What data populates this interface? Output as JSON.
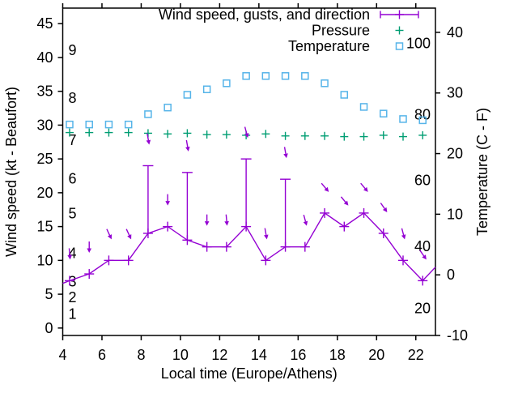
{
  "chart_data": {
    "type": "line",
    "title": "",
    "xlabel": "Local time (Europe/Athens)",
    "ylabel_left": "Wind speed (kt - Beaufort)",
    "ylabel_right": "Temperature (C - F)",
    "x_range": [
      4,
      23
    ],
    "left_range": [
      -1.1,
      47.3
    ],
    "right_range": [
      -10,
      44
    ],
    "x_ticks": [
      4,
      6,
      8,
      10,
      12,
      14,
      16,
      18,
      20,
      22
    ],
    "left_ticks": [
      0,
      5,
      10,
      15,
      20,
      25,
      30,
      35,
      40,
      45
    ],
    "right_ticks": [
      -10,
      0,
      10,
      20,
      30,
      40
    ],
    "beaufort_labels": [
      {
        "label": "1",
        "kt": 2.05
      },
      {
        "label": "2",
        "kt": 4.55
      },
      {
        "label": "3",
        "kt": 6.85
      },
      {
        "label": "4",
        "kt": 11.05
      },
      {
        "label": "5",
        "kt": 16.95
      },
      {
        "label": "6",
        "kt": 22.1
      },
      {
        "label": "7",
        "kt": 27.8
      },
      {
        "label": "8",
        "kt": 34.0
      },
      {
        "label": "9",
        "kt": 41.1
      }
    ],
    "fahrenheit_labels": [
      {
        "label": "20",
        "c": -5.5
      },
      {
        "label": "40",
        "c": 4.7
      },
      {
        "label": "60",
        "c": 15.6
      },
      {
        "label": "80",
        "c": 26.4
      },
      {
        "label": "100",
        "c": 38.2
      }
    ],
    "legend": {
      "rows": [
        {
          "label": "Wind speed, gusts, and direction",
          "series": "wind",
          "marker": "errorbar"
        },
        {
          "label": "Pressure",
          "series": "pressure",
          "marker": "plus"
        },
        {
          "label": "Temperature",
          "series": "temperature",
          "marker": "square"
        }
      ]
    },
    "x": [
      4.35,
      5.35,
      6.35,
      7.35,
      8.35,
      9.35,
      10.35,
      11.35,
      12.35,
      13.35,
      14.35,
      15.35,
      16.35,
      17.35,
      18.35,
      19.35,
      20.35,
      21.35,
      22.35
    ],
    "series": [
      {
        "name": "wind_speed_kt",
        "values": [
          7,
          8,
          10,
          10,
          14,
          15,
          13,
          12,
          12,
          15,
          10,
          12,
          12,
          17,
          15,
          17,
          14,
          10,
          7
        ]
      },
      {
        "name": "gust_kt",
        "values": [
          7,
          8,
          10,
          10,
          24,
          15,
          23,
          12,
          12,
          25,
          10,
          22,
          12,
          17,
          15,
          17,
          14,
          10,
          7
        ]
      },
      {
        "name": "direction_arrow_angle_deg_cw_from_down",
        "values": [
          5,
          0,
          25,
          25,
          10,
          0,
          10,
          0,
          5,
          15,
          10,
          10,
          15,
          40,
          40,
          40,
          35,
          15,
          35
        ]
      },
      {
        "name": "pressure_plotted_on_wind_axis_kt",
        "values": [
          28.9,
          28.9,
          28.9,
          28.9,
          28.8,
          28.7,
          28.8,
          28.6,
          28.6,
          28.5,
          28.7,
          28.4,
          28.4,
          28.4,
          28.3,
          28.3,
          28.5,
          28.3,
          28.5
        ]
      },
      {
        "name": "temperature_c",
        "values": [
          24.8,
          24.8,
          24.8,
          24.8,
          26.5,
          27.6,
          29.7,
          30.6,
          31.6,
          32.8,
          32.8,
          32.8,
          32.8,
          31.6,
          29.7,
          27.7,
          26.6,
          25.7,
          25.5
        ]
      }
    ],
    "wind_edge_start": {
      "t": 4.0,
      "kt": 6.6
    },
    "wind_edge_end": {
      "t": 23.0,
      "kt": 9.0
    }
  },
  "colors": {
    "wind": "#9400d3",
    "pressure": "#009e73",
    "temperature": "#56b4e9",
    "axis": "#000000",
    "background": "#ffffff"
  }
}
